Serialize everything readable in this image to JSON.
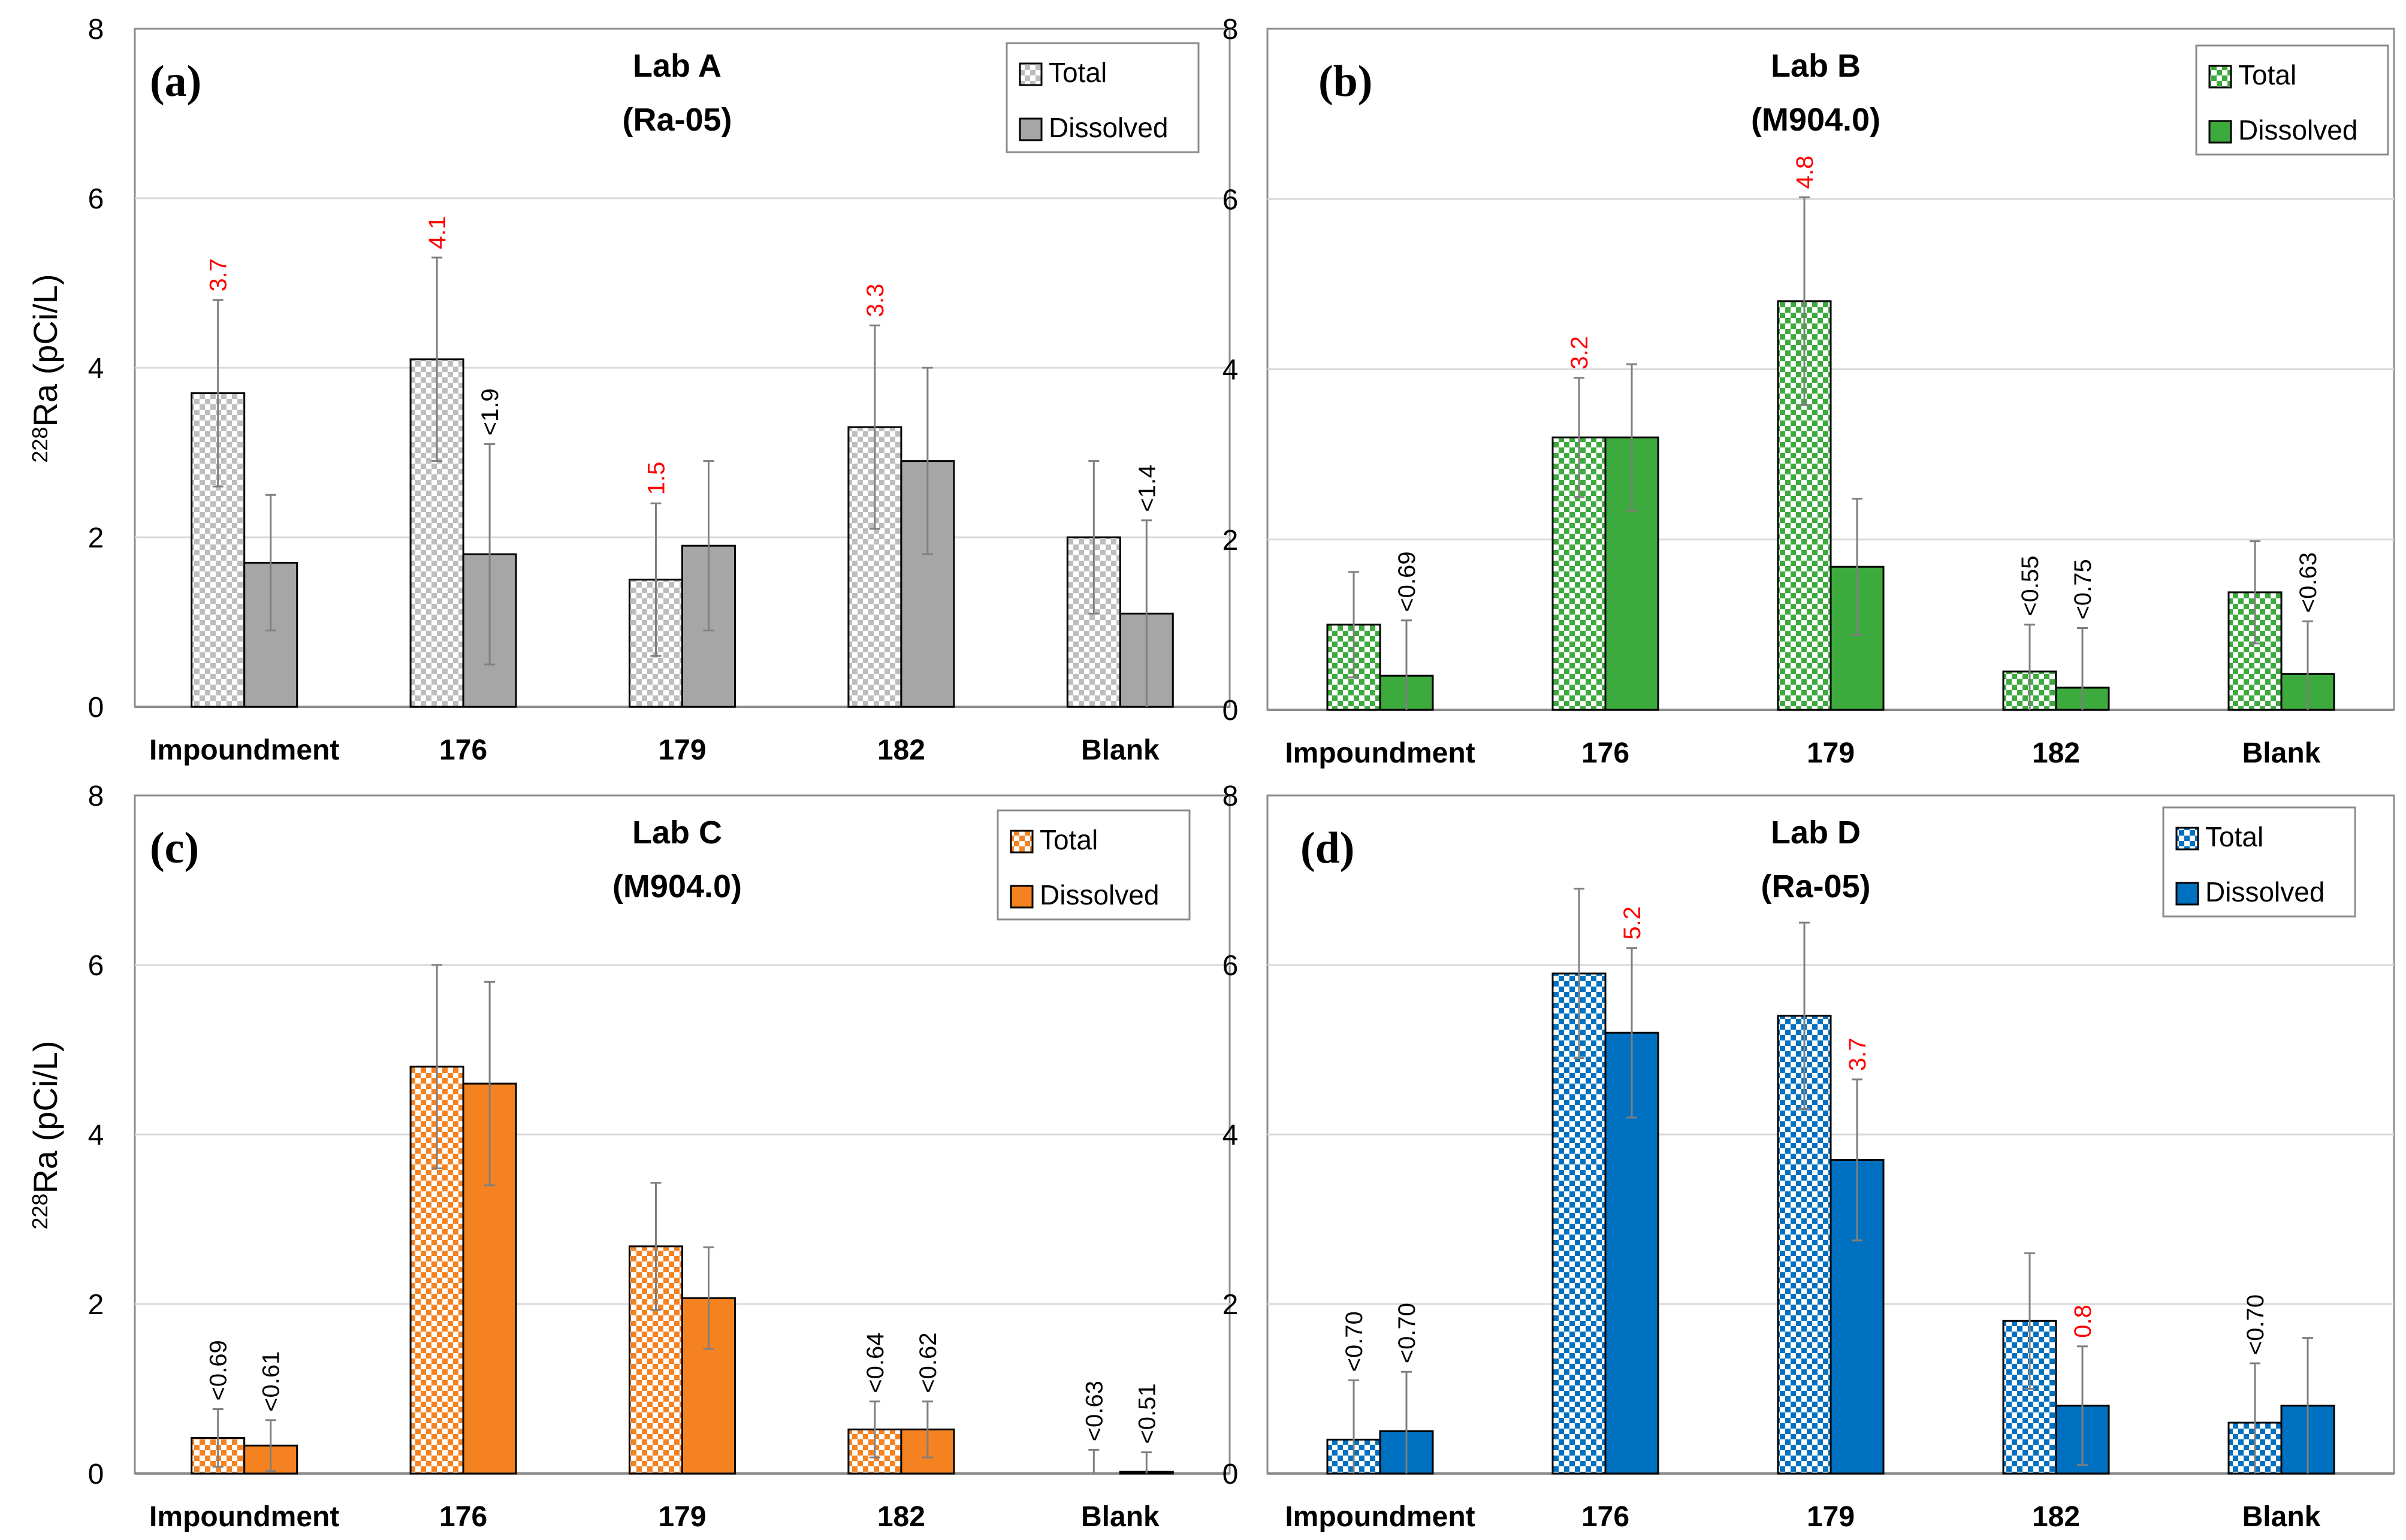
{
  "figure": {
    "shared_ylabel_main": "Ra (pCi/L)",
    "shared_ylabel_sup": "228"
  },
  "chart_data": [
    {
      "type": "bar",
      "panel": "(a)",
      "title": "Lab A",
      "subtitle": "(Ra-05)",
      "categories": [
        "Impoundment",
        "176",
        "179",
        "182",
        "Blank"
      ],
      "ylim": [
        0,
        8
      ],
      "yticks": [
        0,
        2,
        4,
        6,
        8
      ],
      "grid": true,
      "legend_position": "top-right",
      "colors": {
        "dissolved": "#a6a6a6",
        "total_a": "#ffffff",
        "total_b": "#bdbdbd"
      },
      "series": [
        {
          "name": "Total",
          "pattern": "checker",
          "values": [
            3.7,
            4.1,
            1.5,
            3.3,
            2.0
          ],
          "errors": [
            1.1,
            1.2,
            0.9,
            1.2,
            0.9
          ]
        },
        {
          "name": "Dissolved",
          "pattern": "solid",
          "values": [
            1.7,
            1.8,
            1.9,
            2.9,
            1.1
          ],
          "errors": [
            0.8,
            1.3,
            1.0,
            1.1,
            1.1
          ]
        }
      ],
      "labels": [
        {
          "series": 0,
          "index": 0,
          "text": "3.7",
          "color": "#ff0000"
        },
        {
          "series": 0,
          "index": 1,
          "text": "4.1",
          "color": "#ff0000"
        },
        {
          "series": 1,
          "index": 1,
          "text": "<1.9",
          "color": "#000000"
        },
        {
          "series": 0,
          "index": 2,
          "text": "1.5",
          "color": "#ff0000"
        },
        {
          "series": 0,
          "index": 3,
          "text": "3.3",
          "color": "#ff0000"
        },
        {
          "series": 1,
          "index": 4,
          "text": "<1.4",
          "color": "#000000"
        }
      ]
    },
    {
      "type": "bar",
      "panel": "(b)",
      "title": "Lab B",
      "subtitle": "(M904.0)",
      "categories": [
        "Impoundment",
        "176",
        "179",
        "182",
        "Blank"
      ],
      "ylim": [
        0,
        8
      ],
      "yticks": [
        0,
        2,
        4,
        6,
        8
      ],
      "grid": true,
      "legend_position": "top-right",
      "colors": {
        "dissolved": "#3caa3c",
        "total_a": "#ffffff",
        "total_b": "#3caa3c"
      },
      "series": [
        {
          "name": "Total",
          "pattern": "checker",
          "values": [
            1.0,
            3.2,
            4.8,
            0.45,
            1.38
          ],
          "errors": [
            0.62,
            0.7,
            1.22,
            0.55,
            0.6
          ]
        },
        {
          "name": "Dissolved",
          "pattern": "solid",
          "values": [
            0.4,
            3.2,
            1.68,
            0.26,
            0.42
          ],
          "errors": [
            0.65,
            0.86,
            0.8,
            0.7,
            0.62
          ]
        }
      ],
      "labels": [
        {
          "series": 1,
          "index": 0,
          "text": "<0.69",
          "color": "#000000"
        },
        {
          "series": 0,
          "index": 1,
          "text": "3.2",
          "color": "#ff0000"
        },
        {
          "series": 0,
          "index": 2,
          "text": "4.8",
          "color": "#ff0000"
        },
        {
          "series": 0,
          "index": 3,
          "text": "<0.55",
          "color": "#000000"
        },
        {
          "series": 1,
          "index": 3,
          "text": "<0.75",
          "color": "#000000"
        },
        {
          "series": 1,
          "index": 4,
          "text": "<0.63",
          "color": "#000000"
        }
      ]
    },
    {
      "type": "bar",
      "panel": "(c)",
      "title": "Lab C",
      "subtitle": "(M904.0)",
      "categories": [
        "Impoundment",
        "176",
        "179",
        "182",
        "Blank"
      ],
      "ylim": [
        0,
        8
      ],
      "yticks": [
        0,
        2,
        4,
        6,
        8
      ],
      "grid": true,
      "legend_position": "top-right",
      "colors": {
        "dissolved": "#f58220",
        "total_a": "#ffffff",
        "total_b": "#f58220"
      },
      "series": [
        {
          "name": "Total",
          "pattern": "checker",
          "values": [
            0.42,
            4.8,
            2.68,
            0.52,
            0.0
          ],
          "errors": [
            0.34,
            1.2,
            0.75,
            0.33,
            0.28
          ]
        },
        {
          "name": "Dissolved",
          "pattern": "solid",
          "values": [
            0.33,
            4.6,
            2.07,
            0.52,
            0.02
          ],
          "errors": [
            0.3,
            1.2,
            0.6,
            0.33,
            0.23
          ]
        }
      ],
      "labels": [
        {
          "series": 0,
          "index": 0,
          "text": "<0.69",
          "color": "#000000"
        },
        {
          "series": 1,
          "index": 0,
          "text": "<0.61",
          "color": "#000000"
        },
        {
          "series": 0,
          "index": 3,
          "text": "<0.64",
          "color": "#000000"
        },
        {
          "series": 1,
          "index": 3,
          "text": "<0.62",
          "color": "#000000"
        },
        {
          "series": 0,
          "index": 4,
          "text": "<0.63",
          "color": "#000000"
        },
        {
          "series": 1,
          "index": 4,
          "text": "<0.51",
          "color": "#000000"
        }
      ]
    },
    {
      "type": "bar",
      "panel": "(d)",
      "title": "Lab D",
      "subtitle": "(Ra-05)",
      "categories": [
        "Impoundment",
        "176",
        "179",
        "182",
        "Blank"
      ],
      "ylim": [
        0,
        8
      ],
      "yticks": [
        0,
        2,
        4,
        6,
        8
      ],
      "grid": true,
      "legend_position": "top-right",
      "colors": {
        "dissolved": "#0070c0",
        "total_a": "#ffffff",
        "total_b": "#0070c0"
      },
      "series": [
        {
          "name": "Total",
          "pattern": "checker",
          "values": [
            0.4,
            5.9,
            5.4,
            1.8,
            0.6
          ],
          "errors": [
            0.7,
            1.0,
            1.1,
            0.8,
            0.7
          ]
        },
        {
          "name": "Dissolved",
          "pattern": "solid",
          "values": [
            0.5,
            5.2,
            3.7,
            0.8,
            0.8
          ],
          "errors": [
            0.7,
            1.0,
            0.95,
            0.7,
            0.8
          ]
        }
      ],
      "labels": [
        {
          "series": 0,
          "index": 0,
          "text": "<0.70",
          "color": "#000000"
        },
        {
          "series": 1,
          "index": 0,
          "text": "<0.70",
          "color": "#000000"
        },
        {
          "series": 1,
          "index": 1,
          "text": "5.2",
          "color": "#ff0000"
        },
        {
          "series": 1,
          "index": 2,
          "text": "3.7",
          "color": "#ff0000"
        },
        {
          "series": 1,
          "index": 3,
          "text": "0.8",
          "color": "#ff0000"
        },
        {
          "series": 0,
          "index": 4,
          "text": "<0.70",
          "color": "#000000"
        }
      ]
    }
  ]
}
